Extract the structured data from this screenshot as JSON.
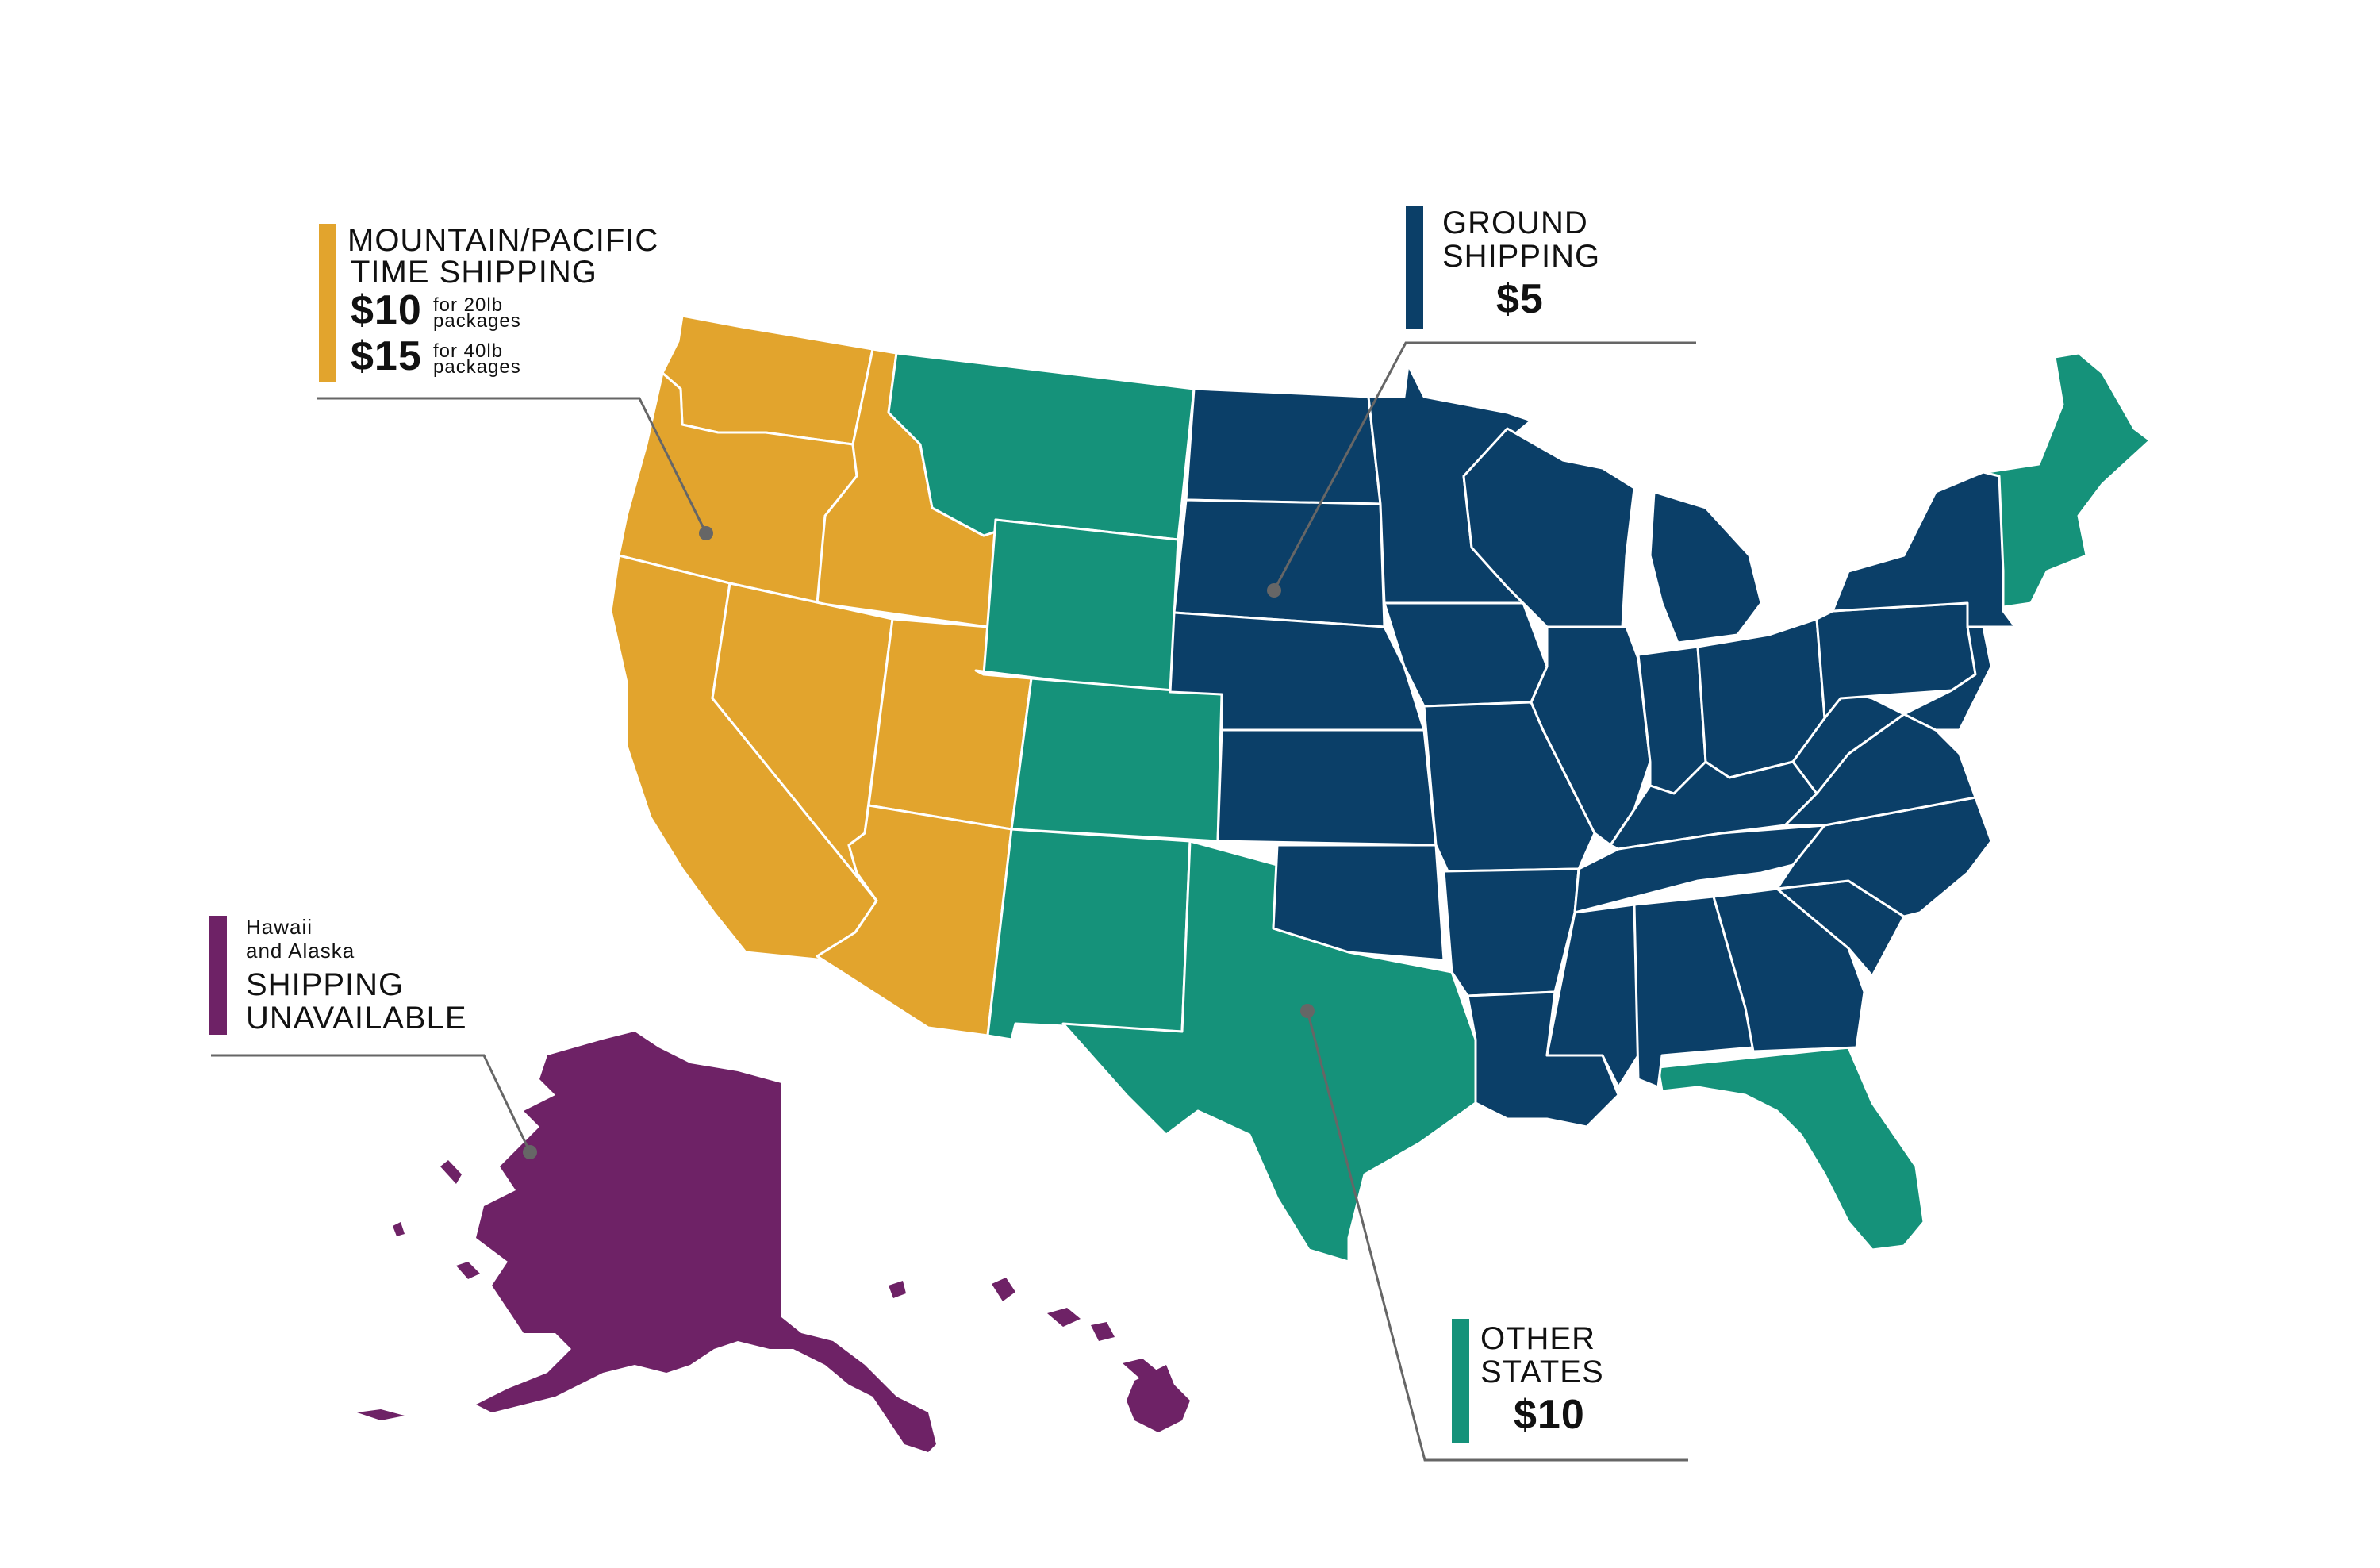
{
  "colors": {
    "pacific": "#E2A42D",
    "ground": "#0B3F68",
    "other": "#15927A",
    "unavailable": "#6E2266",
    "leader": "#666666"
  },
  "legends": {
    "mountain_pacific": {
      "title_line1": "MOUNTAIN/PACIFIC",
      "title_line2": "TIME SHIPPING",
      "price1": "$10",
      "price1_note_line1": "for 20lb",
      "price1_note_line2": "packages",
      "price2": "$15",
      "price2_note_line1": "for 40lb",
      "price2_note_line2": "packages"
    },
    "ground": {
      "title_line1": "GROUND",
      "title_line2": "SHIPPING",
      "price": "$5"
    },
    "other": {
      "title_line1": "OTHER",
      "title_line2": "STATES",
      "price": "$10"
    },
    "unavailable": {
      "subtitle_line1": "Hawaii",
      "subtitle_line2": "and Alaska",
      "title_line1": "SHIPPING",
      "title_line2": "UNAVAILABLE"
    }
  }
}
